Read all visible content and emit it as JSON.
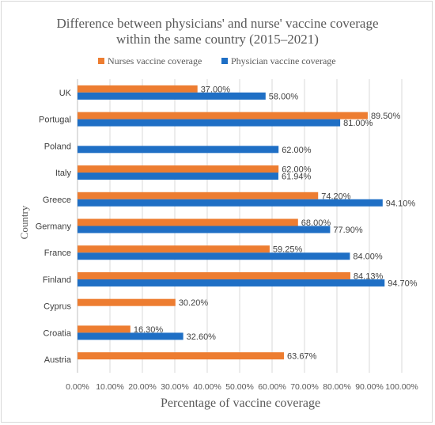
{
  "chart_data": {
    "type": "bar",
    "orientation": "horizontal",
    "title_lines": [
      "Difference between physicians' and nurse' vaccine coverage",
      "within the same country (2015‒2021)"
    ],
    "xlabel": "Percentage of vaccine coverage",
    "ylabel": "Country",
    "xlim": [
      0,
      100
    ],
    "x_ticks": [
      "0.00%",
      "10.00%",
      "20.00%",
      "30.00%",
      "40.00%",
      "50.00%",
      "60.00%",
      "70.00%",
      "80.00%",
      "90.00%",
      "100.00%"
    ],
    "grid": "vertical",
    "legend_position": "top",
    "categories": [
      "UK",
      "Portugal",
      "Poland",
      "Italy",
      "Greece",
      "Germany",
      "France",
      "Finland",
      "Cyprus",
      "Croatia",
      "Austria"
    ],
    "series": [
      {
        "name": "Nurses vaccine coverage",
        "color": "#ed7d31",
        "values": [
          37.0,
          89.5,
          null,
          62.0,
          74.2,
          68.0,
          59.25,
          84.13,
          30.2,
          16.3,
          63.67
        ],
        "labels": [
          "37.00%",
          "89.50%",
          "",
          "62.00%",
          "74.20%",
          "68.00%",
          "59.25%",
          "84.13%",
          "30.20%",
          "16.30%",
          "63.67%"
        ]
      },
      {
        "name": "Physician vaccine coverage",
        "color": "#1f6fc5",
        "values": [
          58.0,
          81.0,
          62.0,
          61.94,
          94.1,
          77.9,
          84.0,
          94.7,
          null,
          32.6,
          null
        ],
        "labels": [
          "58.00%",
          "81.00%",
          "62.00%",
          "61.94%",
          "94.10%",
          "77.90%",
          "84.00%",
          "94.70%",
          "",
          "32.60%",
          ""
        ]
      }
    ]
  }
}
